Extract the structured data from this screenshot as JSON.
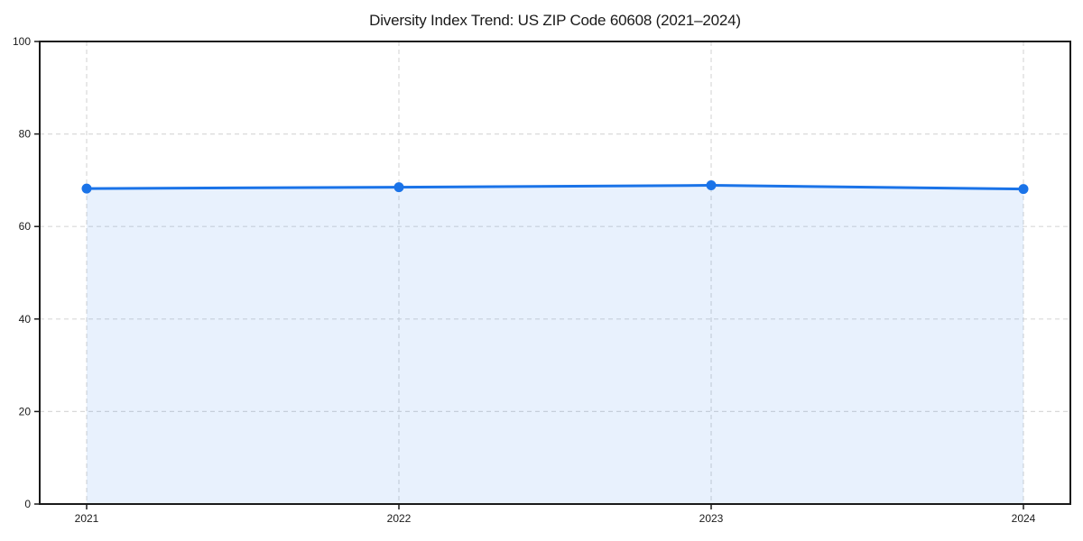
{
  "chart_data": {
    "type": "area",
    "title": "Diversity Index Trend: US ZIP Code 60608 (2021–2024)",
    "x": [
      2021,
      2022,
      2023,
      2024
    ],
    "series": [
      {
        "name": "Diversity Index",
        "values": [
          68.2,
          68.5,
          68.9,
          68.1
        ]
      }
    ],
    "xlabel": "",
    "ylabel": "",
    "xlim": [
      2021,
      2024
    ],
    "ylim": [
      0,
      100
    ],
    "yticks": [
      0,
      20,
      40,
      60,
      80,
      100
    ],
    "xticks": [
      "2021",
      "2022",
      "2023",
      "2024"
    ],
    "grid": true,
    "grid_style": "dashed",
    "legend": false,
    "colors": {
      "line": "#1a73e8",
      "marker": "#1a73e8",
      "fill": "rgba(26,115,232,0.10)",
      "grid": "#d9d9d9",
      "axis": "#1a1a1a",
      "text": "#1a1a1a",
      "background": "#ffffff"
    }
  }
}
